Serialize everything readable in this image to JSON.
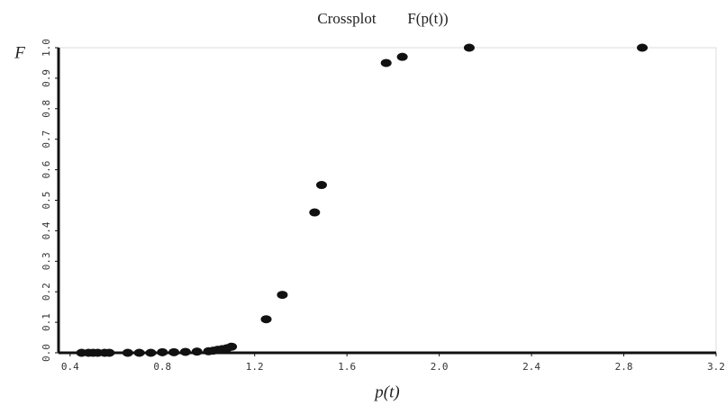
{
  "chart_data": {
    "type": "scatter",
    "title": "Crossplot",
    "subtitle": "F(p(t))",
    "x_label": "p(t)",
    "y_label": "F",
    "series": [
      {
        "color": "#111111",
        "x": [
          0.45,
          0.48,
          0.5,
          0.52,
          0.55,
          0.57,
          0.65,
          0.7,
          0.75,
          0.8,
          0.85,
          0.9,
          0.95,
          1.0,
          1.02,
          1.04,
          1.06,
          1.08,
          1.1,
          1.25,
          1.32,
          1.46,
          1.49,
          1.77,
          1.84,
          2.13,
          2.88
        ],
        "y": [
          0.0,
          0.0,
          0.0,
          0.0,
          0.0,
          0.0,
          0.0,
          0.0,
          0.0,
          0.002,
          0.002,
          0.003,
          0.004,
          0.005,
          0.007,
          0.01,
          0.012,
          0.015,
          0.02,
          0.11,
          0.19,
          0.46,
          0.55,
          0.95,
          0.97,
          1.0,
          1.0
        ]
      }
    ],
    "xlim": [
      0.35,
      3.2
    ],
    "xticks": [
      0.4,
      0.8,
      1.2,
      1.6,
      {
        "value": 2,
        "label": "2.0"
      },
      2.4,
      2.8,
      3.2
    ],
    "ylim": [
      0,
      1
    ],
    "yticks": [
      {
        "value": 0,
        "label": "0.0"
      },
      0.1,
      0.2,
      0.3,
      0.4,
      0.5,
      0.6,
      0.7,
      0.8,
      0.9,
      {
        "value": 1,
        "label": "1.0"
      }
    ]
  }
}
